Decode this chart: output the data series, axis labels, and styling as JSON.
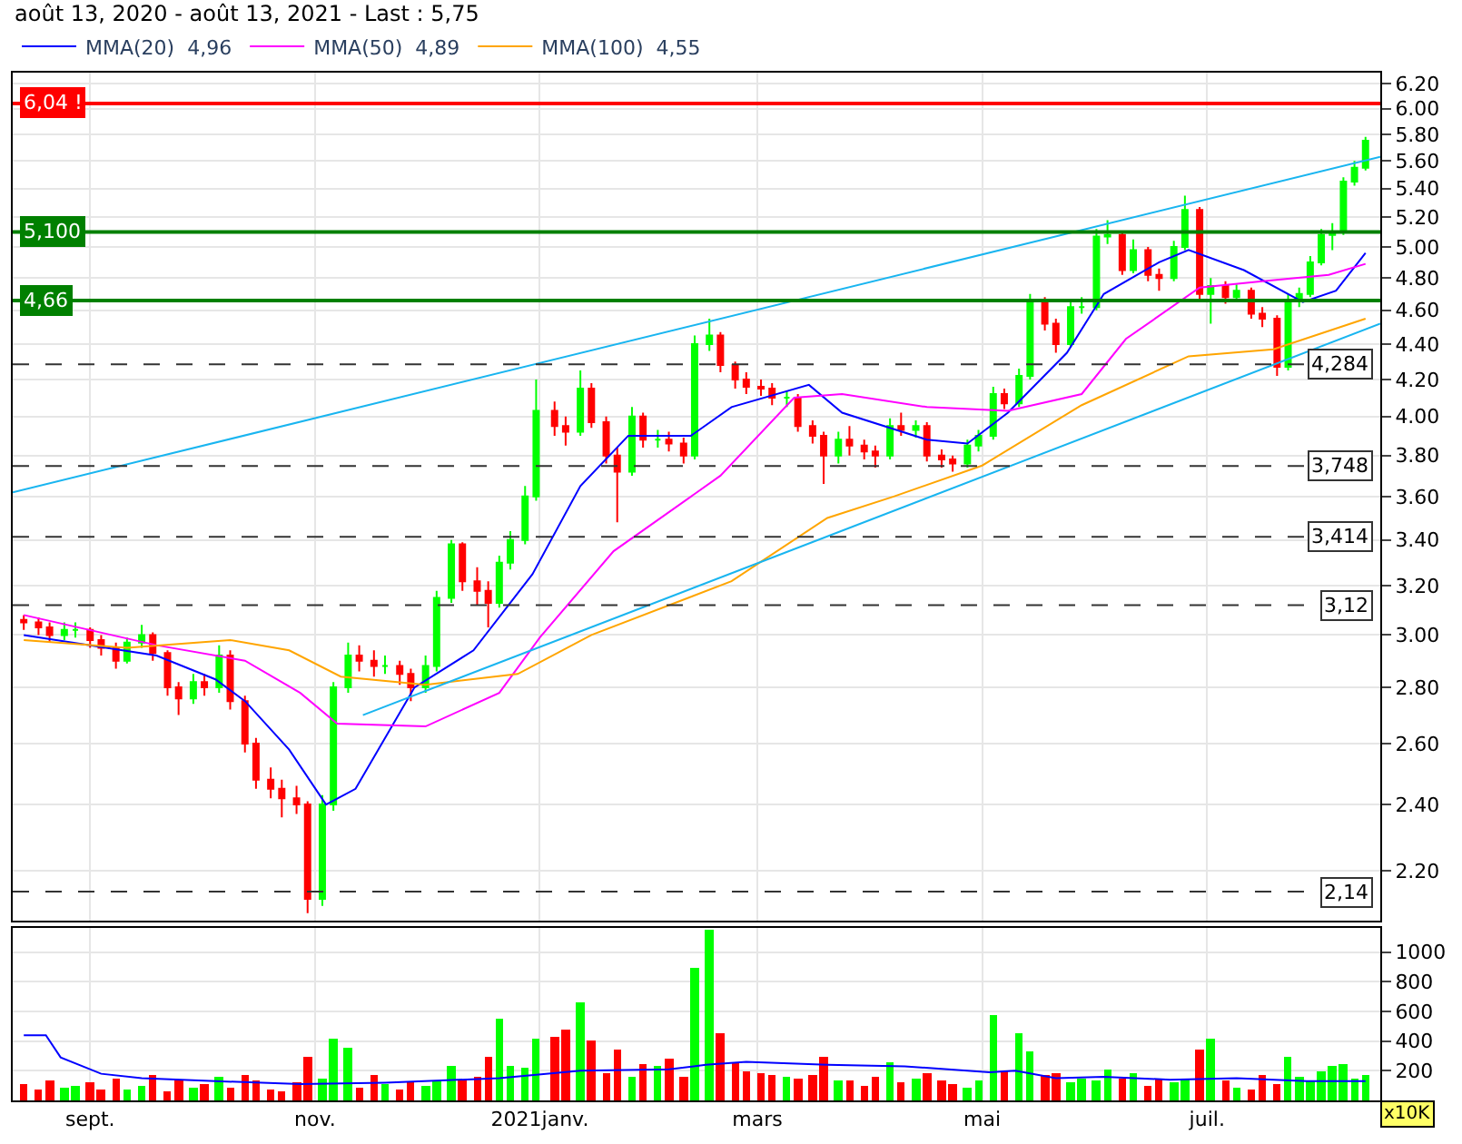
{
  "chart_data": [
    {
      "type": "candlestick",
      "title": "août 13, 2020 - août 13, 2021 - Last : 5,75",
      "log": "y",
      "grid": true,
      "legend": "top left",
      "tick_labels": "y",
      "xlim": [
        "2020-08-11",
        "2021-08-17"
      ],
      "xticks": [
        {
          "value": "2020-09-01",
          "label": null
        },
        {
          "value": "2020-11-01",
          "label": null
        },
        {
          "value": "2021-01-01",
          "label": null
        },
        {
          "value": "2021-03-01",
          "label": null
        },
        {
          "value": "2021-05-01",
          "label": null
        },
        {
          "value": "2021-07-01",
          "label": null
        }
      ],
      "ylim": [
        2.06,
        6.29
      ],
      "yticks": [
        {
          "value": 2.2,
          "label": "2.20"
        },
        {
          "value": 2.4,
          "label": "2.40"
        },
        {
          "value": 2.6,
          "label": "2.60"
        },
        {
          "value": 2.8,
          "label": "2.80"
        },
        {
          "value": 3.0,
          "label": "3.00"
        },
        {
          "value": 3.2,
          "label": "3.20"
        },
        {
          "value": 3.4,
          "label": "3.40"
        },
        {
          "value": 3.6,
          "label": "3.60"
        },
        {
          "value": 3.8,
          "label": "3.80"
        },
        {
          "value": 4.0,
          "label": "4.00"
        },
        {
          "value": 4.2,
          "label": "4.20"
        },
        {
          "value": 4.4,
          "label": "4.40"
        },
        {
          "value": 4.6,
          "label": "4.60"
        },
        {
          "value": 4.8,
          "label": "4.80"
        },
        {
          "value": 5.0,
          "label": "5.00"
        },
        {
          "value": 5.2,
          "label": "5.20"
        },
        {
          "value": 5.4,
          "label": "5.40"
        },
        {
          "value": 5.6,
          "label": "5.60"
        },
        {
          "value": 5.8,
          "label": "5.80"
        },
        {
          "value": 6.0,
          "label": "6.00"
        },
        {
          "value": 6.2,
          "label": "6.20"
        }
      ],
      "x": [
        "2020-08-14",
        "2020-08-18",
        "2020-08-21",
        "2020-08-25",
        "2020-08-28",
        "2020-09-01",
        "2020-09-04",
        "2020-09-08",
        "2020-09-11",
        "2020-09-15",
        "2020-09-18",
        "2020-09-22",
        "2020-09-25",
        "2020-09-29",
        "2020-10-02",
        "2020-10-06",
        "2020-10-09",
        "2020-10-13",
        "2020-10-16",
        "2020-10-20",
        "2020-10-23",
        "2020-10-27",
        "2020-10-30",
        "2020-11-03",
        "2020-11-06",
        "2020-11-10",
        "2020-11-13",
        "2020-11-17",
        "2020-11-20",
        "2020-11-24",
        "2020-11-27",
        "2020-12-01",
        "2020-12-04",
        "2020-12-08",
        "2020-12-11",
        "2020-12-15",
        "2020-12-18",
        "2020-12-21",
        "2020-12-24",
        "2020-12-28",
        "2020-12-31",
        "2021-01-05",
        "2021-01-08",
        "2021-01-12",
        "2021-01-15",
        "2021-01-19",
        "2021-01-22",
        "2021-01-26",
        "2021-01-29",
        "2021-02-02",
        "2021-02-05",
        "2021-02-09",
        "2021-02-12",
        "2021-02-16",
        "2021-02-19",
        "2021-02-23",
        "2021-02-26",
        "2021-03-02",
        "2021-03-05",
        "2021-03-09",
        "2021-03-12",
        "2021-03-16",
        "2021-03-19",
        "2021-03-23",
        "2021-03-26",
        "2021-03-30",
        "2021-04-02",
        "2021-04-06",
        "2021-04-09",
        "2021-04-13",
        "2021-04-16",
        "2021-04-20",
        "2021-04-23",
        "2021-04-27",
        "2021-04-30",
        "2021-05-04",
        "2021-05-07",
        "2021-05-11",
        "2021-05-14",
        "2021-05-18",
        "2021-05-21",
        "2021-05-25",
        "2021-05-28",
        "2021-06-01",
        "2021-06-04",
        "2021-06-08",
        "2021-06-11",
        "2021-06-15",
        "2021-06-18",
        "2021-06-22",
        "2021-06-25",
        "2021-06-29",
        "2021-07-02",
        "2021-07-06",
        "2021-07-09",
        "2021-07-13",
        "2021-07-16",
        "2021-07-20",
        "2021-07-23",
        "2021-07-26",
        "2021-07-29",
        "2021-08-01",
        "2021-08-04",
        "2021-08-07",
        "2021-08-10",
        "2021-08-13"
      ],
      "ohlc": [
        [
          3.06,
          3.08,
          3.02,
          3.05
        ],
        [
          3.05,
          3.07,
          3.0,
          3.03
        ],
        [
          3.03,
          3.05,
          2.97,
          3.0
        ],
        [
          3.0,
          3.05,
          2.98,
          3.02
        ],
        [
          3.02,
          3.05,
          2.99,
          3.02
        ],
        [
          3.02,
          3.03,
          2.95,
          2.98
        ],
        [
          2.98,
          3.0,
          2.92,
          2.95
        ],
        [
          2.95,
          2.97,
          2.87,
          2.9
        ],
        [
          2.9,
          2.99,
          2.89,
          2.97
        ],
        [
          2.97,
          3.04,
          2.95,
          3.0
        ],
        [
          3.0,
          3.01,
          2.9,
          2.93
        ],
        [
          2.93,
          2.94,
          2.77,
          2.8
        ],
        [
          2.8,
          2.82,
          2.7,
          2.76
        ],
        [
          2.76,
          2.85,
          2.74,
          2.82
        ],
        [
          2.82,
          2.85,
          2.77,
          2.8
        ],
        [
          2.8,
          2.96,
          2.78,
          2.92
        ],
        [
          2.92,
          2.94,
          2.72,
          2.75
        ],
        [
          2.75,
          2.77,
          2.57,
          2.6
        ],
        [
          2.6,
          2.62,
          2.45,
          2.48
        ],
        [
          2.48,
          2.52,
          2.42,
          2.45
        ],
        [
          2.45,
          2.48,
          2.36,
          2.42
        ],
        [
          2.42,
          2.46,
          2.37,
          2.4
        ],
        [
          2.4,
          2.41,
          2.08,
          2.12
        ],
        [
          2.12,
          2.43,
          2.1,
          2.4
        ],
        [
          2.4,
          2.82,
          2.38,
          2.8
        ],
        [
          2.8,
          2.97,
          2.78,
          2.92
        ],
        [
          2.92,
          2.96,
          2.86,
          2.9
        ],
        [
          2.9,
          2.94,
          2.84,
          2.88
        ],
        [
          2.88,
          2.92,
          2.85,
          2.88
        ],
        [
          2.88,
          2.9,
          2.81,
          2.85
        ],
        [
          2.85,
          2.87,
          2.75,
          2.8
        ],
        [
          2.8,
          2.92,
          2.78,
          2.88
        ],
        [
          2.88,
          3.18,
          2.86,
          3.15
        ],
        [
          3.15,
          3.4,
          3.13,
          3.38
        ],
        [
          3.38,
          3.39,
          3.18,
          3.22
        ],
        [
          3.22,
          3.28,
          3.12,
          3.18
        ],
        [
          3.18,
          3.22,
          3.03,
          3.13
        ],
        [
          3.13,
          3.33,
          3.11,
          3.3
        ],
        [
          3.3,
          3.44,
          3.27,
          3.4
        ],
        [
          3.4,
          3.65,
          3.38,
          3.6
        ],
        [
          3.6,
          4.2,
          3.58,
          4.03
        ],
        [
          4.03,
          4.08,
          3.9,
          3.95
        ],
        [
          3.95,
          4.0,
          3.85,
          3.92
        ],
        [
          3.92,
          4.25,
          3.9,
          4.15
        ],
        [
          4.15,
          4.18,
          3.94,
          3.97
        ],
        [
          3.97,
          4.0,
          3.76,
          3.8
        ],
        [
          3.8,
          3.84,
          3.48,
          3.72
        ],
        [
          3.72,
          4.05,
          3.7,
          4.0
        ],
        [
          4.0,
          4.02,
          3.84,
          3.88
        ],
        [
          3.88,
          3.93,
          3.84,
          3.88
        ],
        [
          3.88,
          3.92,
          3.82,
          3.86
        ],
        [
          3.86,
          3.89,
          3.76,
          3.8
        ],
        [
          3.8,
          4.45,
          3.78,
          4.4
        ],
        [
          4.4,
          4.55,
          4.36,
          4.45
        ],
        [
          4.45,
          4.47,
          4.24,
          4.28
        ],
        [
          4.28,
          4.3,
          4.15,
          4.2
        ],
        [
          4.2,
          4.24,
          4.12,
          4.16
        ],
        [
          4.16,
          4.2,
          4.11,
          4.15
        ],
        [
          4.15,
          4.18,
          4.06,
          4.1
        ],
        [
          4.1,
          4.14,
          4.05,
          4.1
        ],
        [
          4.1,
          4.12,
          3.92,
          3.95
        ],
        [
          3.95,
          3.98,
          3.86,
          3.9
        ],
        [
          3.9,
          3.92,
          3.66,
          3.8
        ],
        [
          3.8,
          3.92,
          3.76,
          3.88
        ],
        [
          3.88,
          3.95,
          3.8,
          3.85
        ],
        [
          3.85,
          3.88,
          3.78,
          3.82
        ],
        [
          3.82,
          3.85,
          3.74,
          3.8
        ],
        [
          3.8,
          3.99,
          3.78,
          3.95
        ],
        [
          3.95,
          4.02,
          3.9,
          3.93
        ],
        [
          3.93,
          3.98,
          3.89,
          3.95
        ],
        [
          3.95,
          3.97,
          3.77,
          3.8
        ],
        [
          3.8,
          3.83,
          3.74,
          3.78
        ],
        [
          3.78,
          3.8,
          3.72,
          3.76
        ],
        [
          3.76,
          3.88,
          3.74,
          3.85
        ],
        [
          3.85,
          3.93,
          3.82,
          3.9
        ],
        [
          3.9,
          4.16,
          3.88,
          4.12
        ],
        [
          4.12,
          4.15,
          4.04,
          4.07
        ],
        [
          4.07,
          4.26,
          4.05,
          4.22
        ],
        [
          4.22,
          4.7,
          4.2,
          4.65
        ],
        [
          4.65,
          4.68,
          4.48,
          4.52
        ],
        [
          4.52,
          4.55,
          4.35,
          4.4
        ],
        [
          4.4,
          4.66,
          4.38,
          4.62
        ],
        [
          4.62,
          4.68,
          4.58,
          4.62
        ],
        [
          4.62,
          5.12,
          4.6,
          5.07
        ],
        [
          5.07,
          5.18,
          5.02,
          5.08
        ],
        [
          5.08,
          5.1,
          4.82,
          4.85
        ],
        [
          4.85,
          5.05,
          4.83,
          4.98
        ],
        [
          4.98,
          5.0,
          4.78,
          4.82
        ],
        [
          4.82,
          4.86,
          4.72,
          4.8
        ],
        [
          4.8,
          5.04,
          4.78,
          5.0
        ],
        [
          5.0,
          5.35,
          4.98,
          5.25
        ],
        [
          5.25,
          5.27,
          4.65,
          4.7
        ],
        [
          4.7,
          4.8,
          4.52,
          4.75
        ],
        [
          4.75,
          4.78,
          4.64,
          4.68
        ],
        [
          4.68,
          4.76,
          4.65,
          4.72
        ],
        [
          4.72,
          4.74,
          4.55,
          4.58
        ],
        [
          4.58,
          4.62,
          4.5,
          4.55
        ],
        [
          4.55,
          4.57,
          4.22,
          4.27
        ],
        [
          4.27,
          4.7,
          4.25,
          4.66
        ],
        [
          4.66,
          4.74,
          4.62,
          4.7
        ],
        [
          4.7,
          4.94,
          4.68,
          4.9
        ],
        [
          4.9,
          5.12,
          4.88,
          5.08
        ],
        [
          5.08,
          5.16,
          4.98,
          5.1
        ],
        [
          5.1,
          5.48,
          5.08,
          5.45
        ],
        [
          5.45,
          5.6,
          5.42,
          5.55
        ],
        [
          5.55,
          5.78,
          5.53,
          5.75
        ]
      ],
      "colors": [
        "#ff0000",
        "#ff0000",
        "#ff0000",
        "#00ff00",
        "#00ff00",
        "#ff0000",
        "#ff0000",
        "#ff0000",
        "#00ff00",
        "#00ff00",
        "#ff0000",
        "#ff0000",
        "#ff0000",
        "#00ff00",
        "#ff0000",
        "#00ff00",
        "#ff0000",
        "#ff0000",
        "#ff0000",
        "#ff0000",
        "#ff0000",
        "#ff0000",
        "#ff0000",
        "#00ff00",
        "#00ff00",
        "#00ff00",
        "#ff0000",
        "#ff0000",
        "#00ff00",
        "#ff0000",
        "#ff0000",
        "#00ff00",
        "#00ff00",
        "#00ff00",
        "#ff0000",
        "#ff0000",
        "#ff0000",
        "#00ff00",
        "#00ff00",
        "#00ff00",
        "#00ff00",
        "#ff0000",
        "#ff0000",
        "#00ff00",
        "#ff0000",
        "#ff0000",
        "#ff0000",
        "#00ff00",
        "#ff0000",
        "#00ff00",
        "#ff0000",
        "#ff0000",
        "#00ff00",
        "#00ff00",
        "#ff0000",
        "#ff0000",
        "#ff0000",
        "#ff0000",
        "#ff0000",
        "#00ff00",
        "#ff0000",
        "#ff0000",
        "#ff0000",
        "#00ff00",
        "#ff0000",
        "#ff0000",
        "#ff0000",
        "#00ff00",
        "#ff0000",
        "#00ff00",
        "#ff0000",
        "#ff0000",
        "#ff0000",
        "#00ff00",
        "#00ff00",
        "#00ff00",
        "#ff0000",
        "#00ff00",
        "#00ff00",
        "#ff0000",
        "#ff0000",
        "#00ff00",
        "#00ff00",
        "#00ff00",
        "#00ff00",
        "#ff0000",
        "#00ff00",
        "#ff0000",
        "#ff0000",
        "#00ff00",
        "#00ff00",
        "#ff0000",
        "#00ff00",
        "#ff0000",
        "#00ff00",
        "#ff0000",
        "#ff0000",
        "#ff0000",
        "#00ff00",
        "#00ff00",
        "#00ff00",
        "#00ff00",
        "#00ff00",
        "#00ff00",
        "#00ff00",
        "#00ff00"
      ],
      "series": [
        {
          "type": "line",
          "name": "MMA(20)  4,96",
          "color": "#0000ff",
          "x": [
            "2020-08-14",
            "2020-09-19",
            "2020-10-05",
            "2020-10-13",
            "2020-10-25",
            "2020-11-04",
            "2020-11-12",
            "2020-11-28",
            "2020-12-14",
            "2020-12-30",
            "2021-01-12",
            "2021-01-25",
            "2021-02-11",
            "2021-02-22",
            "2021-03-15",
            "2021-03-24",
            "2021-04-16",
            "2021-04-27",
            "2021-05-08",
            "2021-05-24",
            "2021-06-03",
            "2021-06-18",
            "2021-06-26",
            "2021-07-11",
            "2021-07-27",
            "2021-08-05",
            "2021-08-13"
          ],
          "values": [
            3.0,
            2.92,
            2.83,
            2.75,
            2.58,
            2.4,
            2.45,
            2.8,
            2.94,
            3.25,
            3.65,
            3.9,
            3.9,
            4.05,
            4.17,
            4.02,
            3.88,
            3.86,
            4.02,
            4.35,
            4.7,
            4.9,
            4.98,
            4.85,
            4.65,
            4.72,
            4.96
          ]
        },
        {
          "type": "line",
          "name": "MMA(50)  4,89",
          "color": "#ff00ff",
          "x": [
            "2020-08-14",
            "2020-09-19",
            "2020-10-13",
            "2020-10-28",
            "2020-11-07",
            "2020-12-01",
            "2020-12-21",
            "2021-01-01",
            "2021-01-21",
            "2021-02-19",
            "2021-03-11",
            "2021-03-24",
            "2021-04-16",
            "2021-05-08",
            "2021-05-28",
            "2021-06-09",
            "2021-06-29",
            "2021-07-16",
            "2021-08-03",
            "2021-08-13"
          ],
          "values": [
            3.08,
            2.96,
            2.9,
            2.78,
            2.67,
            2.66,
            2.78,
            2.99,
            3.35,
            3.7,
            4.1,
            4.12,
            4.05,
            4.03,
            4.12,
            4.43,
            4.74,
            4.78,
            4.82,
            4.89
          ]
        },
        {
          "type": "line",
          "name": "MMA(100)  4,55",
          "color": "#ffa500",
          "x": [
            "2020-08-14",
            "2020-09-11",
            "2020-10-09",
            "2020-10-25",
            "2020-11-08",
            "2020-12-01",
            "2020-12-26",
            "2021-01-15",
            "2021-02-22",
            "2021-03-20",
            "2021-04-07",
            "2021-05-01",
            "2021-05-28",
            "2021-06-26",
            "2021-07-19",
            "2021-08-13"
          ],
          "values": [
            2.98,
            2.95,
            2.98,
            2.94,
            2.84,
            2.81,
            2.85,
            3.0,
            3.22,
            3.5,
            3.6,
            3.75,
            4.06,
            4.33,
            4.37,
            4.55
          ]
        },
        {
          "type": "line",
          "color": "#19b5f0",
          "x": [
            "2020-08-11",
            "2021-08-17"
          ],
          "values": [
            3.62,
            5.63
          ]
        },
        {
          "type": "line",
          "color": "#19b5f0",
          "x": [
            "2020-11-14",
            "2021-08-17"
          ],
          "values": [
            2.7,
            4.52
          ]
        }
      ],
      "ref_lines": [
        {
          "axis": "y",
          "value": 6.04,
          "label": "6,04 !",
          "color": "#ff0000",
          "line_style": "solid"
        },
        {
          "axis": "y",
          "value": 5.1,
          "label": "5,100",
          "color": "#008000",
          "line_style": "solid"
        },
        {
          "axis": "y",
          "value": 4.66,
          "label": "4,66",
          "color": "#008000",
          "line_style": "solid"
        },
        {
          "axis": "y",
          "value": 4.284,
          "label": "4,284",
          "color": "#333333",
          "line_style": "dashed"
        },
        {
          "axis": "y",
          "value": 3.748,
          "label": "3,748",
          "color": "#333333",
          "line_style": "dashed"
        },
        {
          "axis": "y",
          "value": 3.414,
          "label": "3,414",
          "color": "#333333",
          "line_style": "dashed"
        },
        {
          "axis": "y",
          "value": 3.12,
          "label": "3,12",
          "color": "#333333",
          "line_style": "dashed"
        },
        {
          "axis": "y",
          "value": 2.14,
          "label": "2,14",
          "color": "#333333",
          "line_style": "dashed"
        }
      ]
    },
    {
      "type": "bar",
      "grid": true,
      "ylabel": "x10K",
      "xlim": [
        "2020-08-11",
        "2021-08-17"
      ],
      "xticks": [
        {
          "value": "2020-09-01",
          "label": "sept."
        },
        {
          "value": "2020-11-01",
          "label": "nov."
        },
        {
          "value": "2021-01-01",
          "label": "2021janv."
        },
        {
          "value": "2021-03-01",
          "label": "mars"
        },
        {
          "value": "2021-05-01",
          "label": "mai"
        },
        {
          "value": "2021-07-01",
          "label": "juil."
        }
      ],
      "ylim": [
        0,
        1165
      ],
      "yticks": [
        200,
        400,
        600,
        800,
        1000
      ],
      "x": [
        "2020-08-14",
        "2020-08-18",
        "2020-08-21",
        "2020-08-25",
        "2020-08-28",
        "2020-09-01",
        "2020-09-04",
        "2020-09-08",
        "2020-09-11",
        "2020-09-15",
        "2020-09-18",
        "2020-09-22",
        "2020-09-25",
        "2020-09-29",
        "2020-10-02",
        "2020-10-06",
        "2020-10-09",
        "2020-10-13",
        "2020-10-16",
        "2020-10-20",
        "2020-10-23",
        "2020-10-27",
        "2020-10-30",
        "2020-11-03",
        "2020-11-06",
        "2020-11-10",
        "2020-11-13",
        "2020-11-17",
        "2020-11-20",
        "2020-11-24",
        "2020-11-27",
        "2020-12-01",
        "2020-12-04",
        "2020-12-08",
        "2020-12-11",
        "2020-12-15",
        "2020-12-18",
        "2020-12-21",
        "2020-12-24",
        "2020-12-28",
        "2020-12-31",
        "2021-01-05",
        "2021-01-08",
        "2021-01-12",
        "2021-01-15",
        "2021-01-19",
        "2021-01-22",
        "2021-01-26",
        "2021-01-29",
        "2021-02-02",
        "2021-02-05",
        "2021-02-09",
        "2021-02-12",
        "2021-02-16",
        "2021-02-19",
        "2021-02-23",
        "2021-02-26",
        "2021-03-02",
        "2021-03-05",
        "2021-03-09",
        "2021-03-12",
        "2021-03-16",
        "2021-03-19",
        "2021-03-23",
        "2021-03-26",
        "2021-03-30",
        "2021-04-02",
        "2021-04-06",
        "2021-04-09",
        "2021-04-13",
        "2021-04-16",
        "2021-04-20",
        "2021-04-23",
        "2021-04-27",
        "2021-04-30",
        "2021-05-04",
        "2021-05-07",
        "2021-05-11",
        "2021-05-14",
        "2021-05-18",
        "2021-05-21",
        "2021-05-25",
        "2021-05-28",
        "2021-06-01",
        "2021-06-04",
        "2021-06-08",
        "2021-06-11",
        "2021-06-15",
        "2021-06-18",
        "2021-06-22",
        "2021-06-25",
        "2021-06-29",
        "2021-07-02",
        "2021-07-06",
        "2021-07-09",
        "2021-07-13",
        "2021-07-16",
        "2021-07-20",
        "2021-07-23",
        "2021-07-26",
        "2021-07-29",
        "2021-08-01",
        "2021-08-04",
        "2021-08-07",
        "2021-08-10",
        "2021-08-13"
      ],
      "values": [
        110,
        80,
        140,
        90,
        100,
        120,
        70,
        150,
        80,
        100,
        170,
        60,
        130,
        90,
        110,
        160,
        90,
        170,
        140,
        80,
        60,
        120,
        300,
        150,
        420,
        360,
        90,
        170,
        110,
        80,
        120,
        100,
        130,
        230,
        140,
        160,
        300,
        550,
        230,
        220,
        420,
        430,
        480,
        660,
        400,
        190,
        350,
        160,
        250,
        230,
        280,
        160,
        900,
        1150,
        460,
        260,
        200,
        180,
        170,
        160,
        150,
        170,
        290,
        130,
        140,
        100,
        160,
        260,
        120,
        150,
        190,
        140,
        110,
        90,
        130,
        580,
        200,
        450,
        330,
        170,
        190,
        120,
        150,
        130,
        210,
        150,
        180,
        100,
        150,
        120,
        150,
        340,
        420,
        130,
        90,
        80,
        170,
        110,
        300,
        160,
        130,
        200,
        230,
        250,
        150,
        170
      ],
      "colors": [
        "#ff0000",
        "#ff0000",
        "#ff0000",
        "#00ff00",
        "#00ff00",
        "#ff0000",
        "#ff0000",
        "#ff0000",
        "#00ff00",
        "#00ff00",
        "#ff0000",
        "#ff0000",
        "#ff0000",
        "#00ff00",
        "#ff0000",
        "#00ff00",
        "#ff0000",
        "#ff0000",
        "#ff0000",
        "#ff0000",
        "#ff0000",
        "#ff0000",
        "#ff0000",
        "#00ff00",
        "#00ff00",
        "#00ff00",
        "#ff0000",
        "#ff0000",
        "#00ff00",
        "#ff0000",
        "#ff0000",
        "#00ff00",
        "#00ff00",
        "#00ff00",
        "#ff0000",
        "#ff0000",
        "#ff0000",
        "#00ff00",
        "#00ff00",
        "#00ff00",
        "#00ff00",
        "#ff0000",
        "#ff0000",
        "#00ff00",
        "#ff0000",
        "#ff0000",
        "#ff0000",
        "#00ff00",
        "#ff0000",
        "#00ff00",
        "#ff0000",
        "#ff0000",
        "#00ff00",
        "#00ff00",
        "#ff0000",
        "#ff0000",
        "#ff0000",
        "#ff0000",
        "#ff0000",
        "#00ff00",
        "#ff0000",
        "#ff0000",
        "#ff0000",
        "#00ff00",
        "#ff0000",
        "#ff0000",
        "#ff0000",
        "#00ff00",
        "#ff0000",
        "#00ff00",
        "#ff0000",
        "#ff0000",
        "#ff0000",
        "#00ff00",
        "#00ff00",
        "#00ff00",
        "#ff0000",
        "#00ff00",
        "#00ff00",
        "#ff0000",
        "#ff0000",
        "#00ff00",
        "#00ff00",
        "#00ff00",
        "#00ff00",
        "#ff0000",
        "#00ff00",
        "#ff0000",
        "#ff0000",
        "#00ff00",
        "#00ff00",
        "#ff0000",
        "#00ff00",
        "#ff0000",
        "#00ff00",
        "#ff0000",
        "#ff0000",
        "#ff0000",
        "#00ff00",
        "#00ff00",
        "#00ff00",
        "#00ff00",
        "#00ff00",
        "#00ff00",
        "#00ff00",
        "#00ff00"
      ],
      "series": [
        {
          "type": "line",
          "color": "#0000ff",
          "x": [
            "2020-08-14",
            "2020-08-20",
            "2020-08-24",
            "2020-09-04",
            "2020-09-15",
            "2020-10-05",
            "2020-10-28",
            "2020-11-20",
            "2020-12-21",
            "2021-01-12",
            "2021-02-05",
            "2021-02-15",
            "2021-02-26",
            "2021-03-20",
            "2021-04-10",
            "2021-05-03",
            "2021-05-10",
            "2021-05-21",
            "2021-06-03",
            "2021-06-21",
            "2021-07-09",
            "2021-07-28",
            "2021-08-13"
          ],
          "values": [
            440,
            440,
            290,
            180,
            150,
            130,
            110,
            120,
            150,
            200,
            210,
            240,
            260,
            240,
            230,
            190,
            200,
            150,
            160,
            140,
            150,
            130,
            130
          ]
        }
      ]
    }
  ]
}
